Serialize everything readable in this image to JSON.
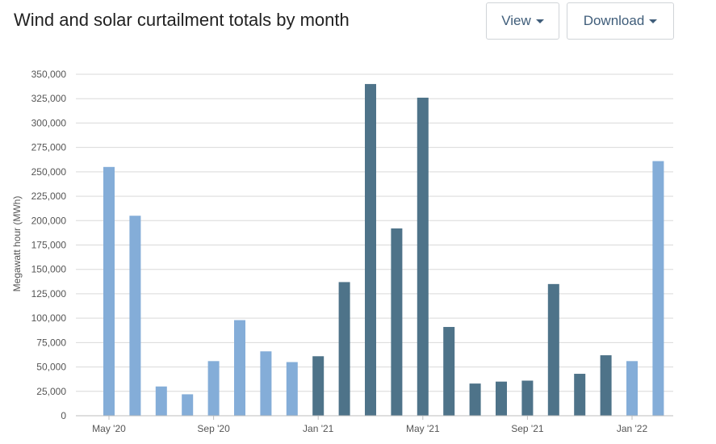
{
  "header": {
    "title": "Wind and solar curtailment totals by month",
    "view_label": "View",
    "download_label": "Download"
  },
  "chart_data": {
    "type": "bar",
    "title": "Wind and solar curtailment totals by month",
    "xlabel": "",
    "ylabel": "Megawatt hour (MWh)",
    "ylim": [
      0,
      350000
    ],
    "y_ticks": [
      0,
      25000,
      50000,
      75000,
      100000,
      125000,
      150000,
      175000,
      200000,
      225000,
      250000,
      275000,
      300000,
      325000,
      350000
    ],
    "y_tick_labels": [
      "0",
      "25,000",
      "50,000",
      "75,000",
      "100,000",
      "125,000",
      "150,000",
      "175,000",
      "200,000",
      "225,000",
      "250,000",
      "275,000",
      "300,000",
      "325,000",
      "350,000"
    ],
    "x_tick_labels": [
      "May '20",
      "Sep '20",
      "Jan '21",
      "May '21",
      "Sep '21",
      "Jan '22"
    ],
    "x_tick_months": [
      "2020-05",
      "2020-09",
      "2021-01",
      "2021-05",
      "2021-09",
      "2022-01"
    ],
    "grid": true,
    "colors": {
      "light": "#84add8",
      "dark": "#4e7389"
    },
    "categories": [
      "2020-05",
      "2020-06",
      "2020-07",
      "2020-08",
      "2020-09",
      "2020-10",
      "2020-11",
      "2020-12",
      "2021-01",
      "2021-02",
      "2021-03",
      "2021-04",
      "2021-05",
      "2021-06",
      "2021-07",
      "2021-08",
      "2021-09",
      "2021-10",
      "2021-11",
      "2021-12",
      "2022-01",
      "2022-02"
    ],
    "values": [
      255000,
      205000,
      30000,
      22000,
      56000,
      98000,
      66000,
      55000,
      61000,
      137000,
      340000,
      192000,
      326000,
      91000,
      33000,
      35000,
      36000,
      135000,
      43000,
      62000,
      56000,
      261000
    ],
    "bar_colors": [
      "light",
      "light",
      "light",
      "light",
      "light",
      "light",
      "light",
      "light",
      "dark",
      "dark",
      "dark",
      "dark",
      "dark",
      "dark",
      "dark",
      "dark",
      "dark",
      "dark",
      "dark",
      "dark",
      "light",
      "light"
    ]
  }
}
